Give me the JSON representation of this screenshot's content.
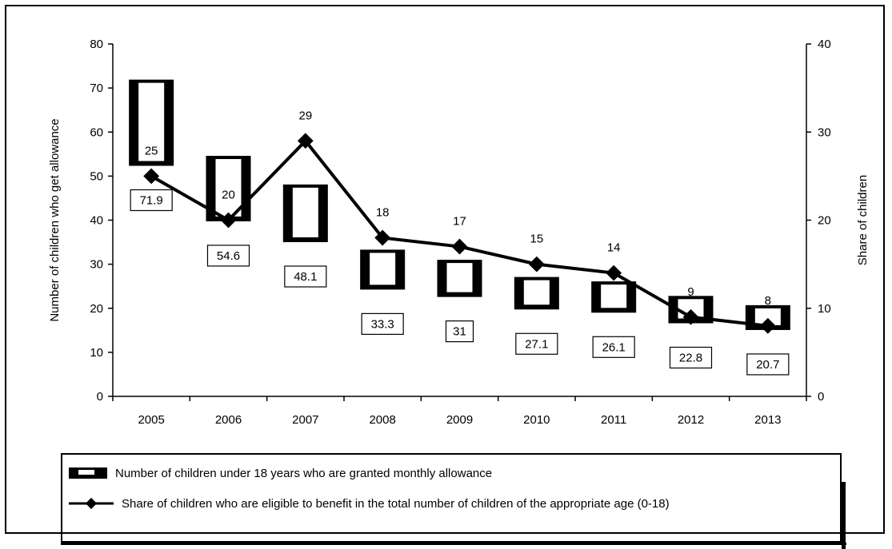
{
  "chart_data": {
    "type": "bar+line",
    "categories": [
      "2005",
      "2006",
      "2007",
      "2008",
      "2009",
      "2010",
      "2011",
      "2012",
      "2013"
    ],
    "series": [
      {
        "name": "Number of children under 18 years who are granted monthly allowance",
        "type": "bar",
        "axis": "left",
        "values": [
          71.9,
          54.6,
          48.1,
          33.3,
          31,
          27.1,
          26.1,
          22.8,
          20.7
        ],
        "labels": [
          "71.9",
          "54.6",
          "48.1",
          "33.3",
          "31",
          "27.1",
          "26.1",
          "22.8",
          "20.7"
        ]
      },
      {
        "name": "Share of children who are eligible to benefit in the total number of children of the appropriate age (0-18)",
        "type": "line",
        "axis": "right",
        "values": [
          25,
          20,
          29,
          18,
          17,
          15,
          14,
          9,
          8
        ],
        "labels": [
          "25",
          "20",
          "29",
          "18",
          "17",
          "15",
          "14",
          "9",
          "8"
        ]
      }
    ],
    "y_left": {
      "label": "Number of children who get allowance",
      "range": [
        0,
        80
      ],
      "ticks": [
        "0",
        "10",
        "20",
        "30",
        "40",
        "50",
        "60",
        "70",
        "80"
      ]
    },
    "y_right": {
      "label": "Share of children",
      "range": [
        0,
        40
      ],
      "ticks": [
        "0",
        "10",
        "20",
        "30",
        "40"
      ]
    },
    "grid": false,
    "legend_position": "bottom"
  }
}
